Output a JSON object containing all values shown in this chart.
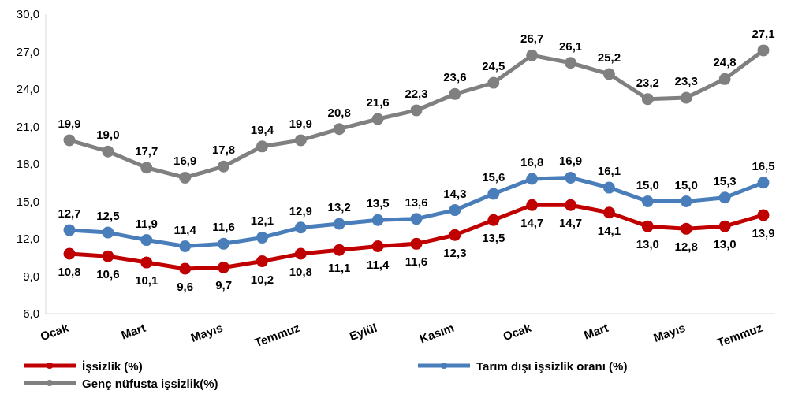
{
  "chart_data": {
    "type": "line",
    "categories": [
      "Ocak",
      null,
      "Mart",
      null,
      "Mayıs",
      null,
      "Temmuz",
      null,
      "Eylül",
      null,
      "Kasım",
      null,
      "Ocak",
      null,
      "Mart",
      null,
      "Mayıs",
      null,
      "Temmuz"
    ],
    "series": [
      {
        "name": "İşsizlik (%)",
        "color": "#c00000",
        "values": [
          10.8,
          10.6,
          10.1,
          9.6,
          9.7,
          10.2,
          10.8,
          11.1,
          11.4,
          11.6,
          12.3,
          13.5,
          14.7,
          14.7,
          14.1,
          13.0,
          12.8,
          13.0,
          13.9
        ],
        "value_labels": [
          "10,8",
          "10,6",
          "10,1",
          "9,6",
          "9,7",
          "10,2",
          "10,8",
          "11,1",
          "11,4",
          "11,6",
          "12,3",
          "13,5",
          "14,7",
          "14,7",
          "14,1",
          "13,0",
          "12,8",
          "13,0",
          "13,9"
        ]
      },
      {
        "name": "Tarım dışı işsizlik oranı (%)",
        "color": "#4a7ebb",
        "values": [
          12.7,
          12.5,
          11.9,
          11.4,
          11.6,
          12.1,
          12.9,
          13.2,
          13.5,
          13.6,
          14.3,
          15.6,
          16.8,
          16.9,
          16.1,
          15.0,
          15.0,
          15.3,
          16.5
        ],
        "value_labels": [
          "12,7",
          "12,5",
          "11,9",
          "11,4",
          "11,6",
          "12,1",
          "12,9",
          "13,2",
          "13,5",
          "13,6",
          "14,3",
          "15,6",
          "16,8",
          "16,9",
          "16,1",
          "15,0",
          "15,0",
          "15,3",
          "16,5"
        ]
      },
      {
        "name": "Genç nüfusta işsizlik(%)",
        "color": "#808080",
        "values": [
          19.9,
          19.0,
          17.7,
          16.9,
          17.8,
          19.4,
          19.9,
          20.8,
          21.6,
          22.3,
          23.6,
          24.5,
          26.7,
          26.1,
          25.2,
          23.2,
          23.3,
          24.8,
          27.1
        ],
        "value_labels": [
          "19,9",
          "19,0",
          "17,7",
          "16,9",
          "17,8",
          "19,4",
          "19,9",
          "20,8",
          "21,6",
          "22,3",
          "23,6",
          "24,5",
          "26,7",
          "26,1",
          "25,2",
          "23,2",
          "23,3",
          "24,8",
          "27,1"
        ]
      }
    ],
    "ylim": [
      6,
      30
    ],
    "yticks": [
      {
        "value": 6,
        "label": "6,0"
      },
      {
        "value": 9,
        "label": "9,0"
      },
      {
        "value": 12,
        "label": "12,0"
      },
      {
        "value": 15,
        "label": "15,0"
      },
      {
        "value": 18,
        "label": "18,0"
      },
      {
        "value": 21,
        "label": "21,0"
      },
      {
        "value": 24,
        "label": "24,0"
      },
      {
        "value": 27,
        "label": "27,0"
      },
      {
        "value": 30,
        "label": "30,0"
      }
    ],
    "grid": false,
    "legend": "bottom",
    "marker": "circle",
    "line_style": "solid"
  }
}
